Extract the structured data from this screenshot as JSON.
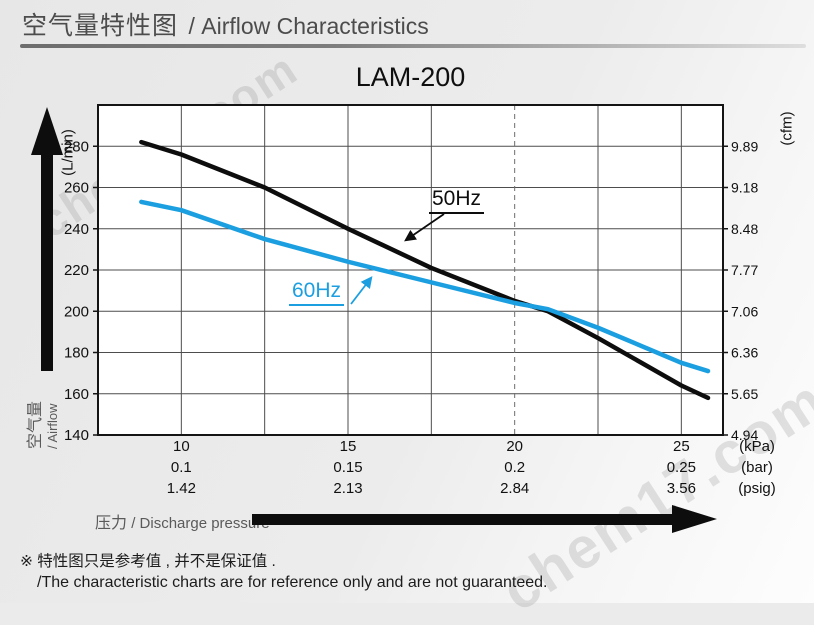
{
  "header": {
    "title_zh": "空气量特性图",
    "title_en": "/ Airflow Characteristics"
  },
  "watermark": {
    "text": "chem17.com"
  },
  "chart_data": {
    "type": "line",
    "title": "LAM-200",
    "x_axis": {
      "tick_values": [
        10,
        15,
        20,
        25
      ],
      "rows": [
        {
          "unit": "(kPa)",
          "ticks": [
            "10",
            "15",
            "20",
            "25"
          ]
        },
        {
          "unit": "(bar)",
          "ticks": [
            "0.1",
            "0.15",
            "0.2",
            "0.25"
          ]
        },
        {
          "unit": "(psig)",
          "ticks": [
            "1.42",
            "2.13",
            "2.84",
            "3.56"
          ]
        }
      ],
      "range": [
        7.5,
        26.25
      ],
      "minor_step": 2.5,
      "dashed_gridline_at": 20,
      "label_zh": "压力",
      "label_en": "/ Discharge pressure"
    },
    "y_axis_left": {
      "unit": "(L/min)",
      "ticks": [
        "280",
        "260",
        "240",
        "220",
        "200",
        "180",
        "160",
        "140"
      ],
      "range": [
        140,
        300
      ],
      "label_zh": "空气量",
      "label_en": "/ Airflow"
    },
    "y_axis_right": {
      "unit": "(cfm)",
      "ticks": [
        "9.89",
        "9.18",
        "8.48",
        "7.77",
        "7.06",
        "6.36",
        "5.65",
        "4.94"
      ]
    },
    "grid": true,
    "legend_position": "inline-annotations",
    "series": [
      {
        "name": "50Hz",
        "color": "#0d0d0d",
        "points": [
          [
            8.8,
            282
          ],
          [
            10,
            276
          ],
          [
            12.5,
            260
          ],
          [
            15,
            240
          ],
          [
            17.5,
            221
          ],
          [
            20,
            205
          ],
          [
            21,
            200
          ],
          [
            22.5,
            187
          ],
          [
            25,
            164
          ],
          [
            25.8,
            158
          ]
        ]
      },
      {
        "name": "60Hz",
        "color": "#1b9fe0",
        "points": [
          [
            8.8,
            253
          ],
          [
            10,
            249
          ],
          [
            12.5,
            235
          ],
          [
            15,
            224
          ],
          [
            17.5,
            214
          ],
          [
            20,
            204
          ],
          [
            21,
            201
          ],
          [
            22.5,
            192
          ],
          [
            25,
            175
          ],
          [
            25.8,
            171
          ]
        ]
      }
    ]
  },
  "footnote": {
    "line1": "※ 特性图只是参考值 , 并不是保证值 .",
    "line2": "/The characteristic charts are for reference only and are not guaranteed."
  }
}
